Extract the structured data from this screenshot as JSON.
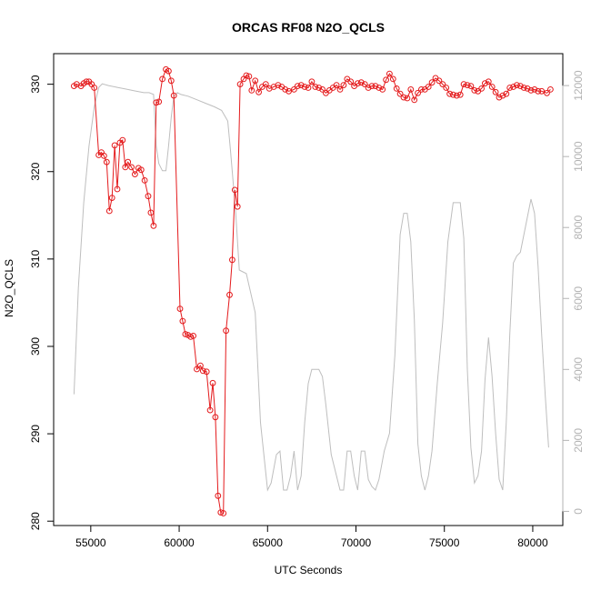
{
  "chart_data": {
    "type": "line",
    "title": "ORCAS RF08 N2O_QCLS",
    "xlabel": "UTC Seconds",
    "ylabel": "N2O_QCLS",
    "xlim": [
      52900,
      81700
    ],
    "ylim": [
      279.5,
      333.5
    ],
    "y2lim": [
      -400,
      12900
    ],
    "x_ticks": [
      55000,
      60000,
      65000,
      70000,
      75000,
      80000
    ],
    "y_ticks": [
      280,
      290,
      300,
      310,
      320,
      330
    ],
    "y2_ticks": [
      0,
      2000,
      4000,
      6000,
      8000,
      10000,
      12000
    ],
    "x_tick_labels": [
      "55000",
      "60000",
      "65000",
      "70000",
      "75000",
      "80000"
    ],
    "y_tick_labels": [
      "280",
      "290",
      "300",
      "310",
      "320",
      "330"
    ],
    "y2_tick_labels": [
      "0",
      "2000",
      "4000",
      "6000",
      "8000",
      "10000",
      "12000"
    ],
    "colors": {
      "n2o": "#e41a1c",
      "altitude": "#bebebe",
      "axis": "#000000",
      "axis2": "#b3b3b3"
    },
    "series": [
      {
        "axis": "left",
        "style": "line+points",
        "x": [
          54050,
          54200,
          54450,
          54600,
          54750,
          54900,
          55050,
          55200,
          55450,
          55600,
          55750,
          55900,
          56050,
          56200,
          56350,
          56500,
          56650,
          56800,
          56950,
          57100,
          57300,
          57500,
          57700,
          57850,
          58050,
          58250,
          58400,
          58550,
          58700,
          58850,
          59050,
          59250,
          59400,
          59550,
          59700,
          60050,
          60200,
          60350,
          60500,
          60650,
          60800,
          61000,
          61200,
          61350,
          61550,
          61750,
          61900,
          62050,
          62200,
          62350,
          62500,
          62650,
          62850,
          63000,
          63150,
          63300,
          63450,
          63650,
          63800,
          63950,
          64100,
          64300,
          64500,
          64700,
          64900,
          65100,
          65350,
          65600,
          65800,
          66000,
          66200,
          66500,
          66700,
          66900,
          67100,
          67300,
          67500,
          67700,
          67900,
          68100,
          68300,
          68500,
          68700,
          68900,
          69100,
          69300,
          69500,
          69700,
          69900,
          70100,
          70300,
          70500,
          70700,
          70900,
          71100,
          71300,
          71500,
          71700,
          71900,
          72100,
          72300,
          72500,
          72700,
          72900,
          73100,
          73300,
          73500,
          73700,
          73900,
          74100,
          74300,
          74500,
          74700,
          74900,
          75100,
          75300,
          75500,
          75700,
          75900,
          76100,
          76300,
          76500,
          76700,
          76900,
          77100,
          77300,
          77500,
          77700,
          77900,
          78100,
          78300,
          78500,
          78700,
          78900,
          79100,
          79300,
          79500,
          79700,
          79900,
          80100,
          80300,
          80500,
          80800,
          81000
        ],
        "y": [
          329.8,
          330.0,
          329.8,
          330.1,
          330.3,
          330.3,
          330.0,
          329.6,
          321.9,
          322.2,
          321.8,
          321.1,
          315.5,
          317.0,
          323.0,
          318.0,
          323.3,
          323.6,
          320.5,
          321.1,
          320.5,
          319.7,
          320.4,
          320.2,
          319.0,
          317.2,
          315.3,
          313.8,
          327.9,
          328.0,
          330.6,
          331.7,
          331.5,
          330.4,
          328.7,
          304.3,
          302.9,
          301.4,
          301.3,
          301.1,
          301.2,
          297.4,
          297.8,
          297.2,
          297.1,
          292.7,
          295.8,
          291.9,
          282.9,
          281.0,
          280.9,
          301.8,
          305.9,
          309.9,
          317.9,
          316.0,
          330.0,
          330.6,
          331.0,
          330.9,
          329.3,
          330.4,
          329.1,
          329.7,
          330.0,
          329.5,
          329.7,
          329.9,
          329.7,
          329.4,
          329.2,
          329.4,
          329.8,
          329.9,
          329.7,
          329.6,
          330.3,
          329.7,
          329.6,
          329.4,
          329.0,
          329.3,
          329.6,
          329.9,
          329.4,
          329.9,
          330.6,
          330.3,
          329.8,
          330.1,
          330.2,
          330.0,
          329.6,
          329.8,
          329.8,
          329.6,
          329.4,
          330.5,
          331.2,
          330.6,
          329.5,
          328.9,
          328.5,
          328.4,
          329.4,
          328.2,
          329.0,
          329.4,
          329.4,
          329.7,
          330.2,
          330.7,
          330.4,
          330.0,
          329.6,
          328.9,
          328.8,
          328.7,
          328.8,
          330.0,
          329.9,
          329.8,
          329.3,
          329.2,
          329.5,
          330.1,
          330.3,
          329.7,
          329.1,
          328.5,
          328.7,
          328.9,
          329.6,
          329.7,
          329.9,
          329.8,
          329.6,
          329.5,
          329.3,
          329.4,
          329.2,
          329.2,
          329.0,
          329.4
        ]
      },
      {
        "axis": "right",
        "style": "line",
        "x": [
          54050,
          54300,
          54600,
          54900,
          55200,
          55450,
          55650,
          56000,
          56500,
          57000,
          57500,
          58000,
          58300,
          58550,
          58700,
          58850,
          59050,
          59250,
          59400,
          59550,
          59700,
          59900,
          60100,
          60500,
          61000,
          61500,
          62000,
          62400,
          62750,
          62900,
          63200,
          63400,
          63800,
          64300,
          64600,
          65000,
          65200,
          65500,
          65700,
          65900,
          66100,
          66300,
          66500,
          66700,
          66900,
          67100,
          67300,
          67500,
          67700,
          67900,
          68100,
          68300,
          68600,
          68900,
          69100,
          69300,
          69500,
          69700,
          69900,
          70100,
          70300,
          70500,
          70700,
          70900,
          71100,
          71300,
          71600,
          71900,
          72200,
          72500,
          72700,
          72900,
          73100,
          73300,
          73500,
          73700,
          73900,
          74100,
          74300,
          74600,
          74900,
          75200,
          75500,
          75700,
          75900,
          76100,
          76300,
          76500,
          76700,
          76900,
          77100,
          77300,
          77500,
          77700,
          77900,
          78100,
          78300,
          78500,
          78700,
          78900,
          79100,
          79300,
          79500,
          79700,
          79900,
          80100,
          80300,
          80500,
          80700,
          80900
        ],
        "y": [
          3300,
          6300,
          8700,
          10300,
          11400,
          11950,
          12050,
          12000,
          11950,
          11900,
          11850,
          11800,
          11800,
          11750,
          10300,
          9800,
          9600,
          9600,
          10300,
          11100,
          11700,
          11800,
          11750,
          11700,
          11600,
          11500,
          11400,
          11300,
          11000,
          10200,
          8400,
          6800,
          6700,
          5600,
          2500,
          600,
          800,
          1600,
          1700,
          600,
          600,
          1000,
          1700,
          600,
          1000,
          2500,
          3600,
          4000,
          4000,
          4000,
          3800,
          3000,
          1600,
          1000,
          600,
          600,
          1700,
          1700,
          1000,
          600,
          1700,
          1700,
          900,
          700,
          600,
          900,
          1700,
          2200,
          4400,
          7800,
          8400,
          8400,
          7600,
          5400,
          1900,
          1000,
          600,
          1000,
          1700,
          3600,
          5300,
          7600,
          8700,
          8700,
          8700,
          7700,
          4000,
          1800,
          800,
          1000,
          1700,
          3700,
          4900,
          3800,
          2200,
          900,
          600,
          2500,
          5000,
          7000,
          7200,
          7300,
          7800,
          8300,
          8800,
          8400,
          6900,
          5000,
          3300,
          1800
        ]
      }
    ]
  }
}
